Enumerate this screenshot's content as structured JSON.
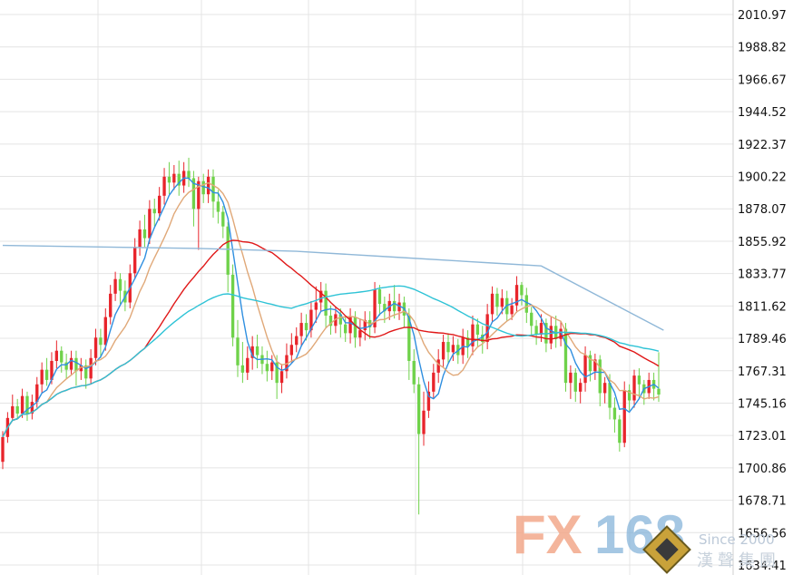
{
  "chart_data": {
    "type": "candlestick",
    "title": "",
    "xlabel": "",
    "ylabel": "",
    "ylim": [
      1634.41,
      2010.97
    ],
    "grid": true,
    "y_ticks": [
      "2010.97",
      "1988.82",
      "1966.67",
      "1944.52",
      "1922.37",
      "1900.22",
      "1878.07",
      "1855.92",
      "1833.77",
      "1811.62",
      "1789.46",
      "1767.31",
      "1745.16",
      "1723.01",
      "1700.86",
      "1678.71",
      "1656.56",
      "1634.41"
    ],
    "up_color": "#e8242b",
    "down_color": "#6fd24a",
    "candles": [
      [
        1705,
        1722,
        1700,
        1726
      ],
      [
        1722,
        1735,
        1718,
        1739
      ],
      [
        1735,
        1743,
        1733,
        1751
      ],
      [
        1743,
        1738,
        1734,
        1748
      ],
      [
        1738,
        1750,
        1735,
        1755
      ],
      [
        1750,
        1738,
        1733,
        1753
      ],
      [
        1738,
        1746,
        1734,
        1751
      ],
      [
        1746,
        1758,
        1742,
        1763
      ],
      [
        1758,
        1768,
        1752,
        1773
      ],
      [
        1768,
        1761,
        1757,
        1776
      ],
      [
        1761,
        1774,
        1758,
        1780
      ],
      [
        1774,
        1781,
        1769,
        1788
      ],
      [
        1781,
        1773,
        1766,
        1784
      ],
      [
        1773,
        1768,
        1762,
        1779
      ],
      [
        1768,
        1776,
        1765,
        1781
      ],
      [
        1776,
        1767,
        1757,
        1781
      ],
      [
        1767,
        1771,
        1761,
        1776
      ],
      [
        1771,
        1762,
        1755,
        1775
      ],
      [
        1762,
        1776,
        1758,
        1782
      ],
      [
        1776,
        1790,
        1771,
        1796
      ],
      [
        1790,
        1785,
        1776,
        1796
      ],
      [
        1785,
        1804,
        1781,
        1810
      ],
      [
        1804,
        1820,
        1799,
        1826
      ],
      [
        1820,
        1830,
        1815,
        1835
      ],
      [
        1830,
        1822,
        1813,
        1834
      ],
      [
        1822,
        1814,
        1808,
        1829
      ],
      [
        1814,
        1834,
        1810,
        1840
      ],
      [
        1834,
        1852,
        1830,
        1858
      ],
      [
        1852,
        1864,
        1846,
        1870
      ],
      [
        1864,
        1858,
        1852,
        1874
      ],
      [
        1858,
        1878,
        1854,
        1884
      ],
      [
        1878,
        1875,
        1866,
        1885
      ],
      [
        1875,
        1887,
        1870,
        1893
      ],
      [
        1887,
        1900,
        1881,
        1906
      ],
      [
        1900,
        1896,
        1888,
        1910
      ],
      [
        1896,
        1902,
        1891,
        1908
      ],
      [
        1902,
        1894,
        1887,
        1911
      ],
      [
        1894,
        1904,
        1889,
        1910
      ],
      [
        1904,
        1899,
        1893,
        1913
      ],
      [
        1899,
        1878,
        1866,
        1904
      ],
      [
        1878,
        1897,
        1850,
        1900
      ],
      [
        1897,
        1888,
        1882,
        1902
      ],
      [
        1888,
        1900,
        1882,
        1905
      ],
      [
        1900,
        1883,
        1872,
        1905
      ],
      [
        1883,
        1876,
        1868,
        1891
      ],
      [
        1876,
        1866,
        1858,
        1880
      ],
      [
        1866,
        1833,
        1821,
        1869
      ],
      [
        1833,
        1790,
        1784,
        1840
      ],
      [
        1790,
        1771,
        1763,
        1802
      ],
      [
        1771,
        1766,
        1759,
        1787
      ],
      [
        1766,
        1776,
        1761,
        1784
      ],
      [
        1776,
        1784,
        1768,
        1791
      ],
      [
        1784,
        1778,
        1769,
        1792
      ],
      [
        1778,
        1772,
        1765,
        1784
      ],
      [
        1772,
        1767,
        1760,
        1781
      ],
      [
        1767,
        1773,
        1761,
        1778
      ],
      [
        1773,
        1759,
        1748,
        1778
      ],
      [
        1759,
        1767,
        1752,
        1772
      ],
      [
        1767,
        1778,
        1762,
        1786
      ],
      [
        1778,
        1785,
        1773,
        1793
      ],
      [
        1785,
        1791,
        1780,
        1797
      ],
      [
        1791,
        1800,
        1784,
        1807
      ],
      [
        1800,
        1795,
        1788,
        1806
      ],
      [
        1795,
        1809,
        1790,
        1815
      ],
      [
        1809,
        1814,
        1800,
        1825
      ],
      [
        1814,
        1822,
        1808,
        1828
      ],
      [
        1822,
        1805,
        1797,
        1827
      ],
      [
        1805,
        1798,
        1792,
        1812
      ],
      [
        1798,
        1806,
        1793,
        1811
      ],
      [
        1806,
        1799,
        1790,
        1810
      ],
      [
        1799,
        1793,
        1787,
        1805
      ],
      [
        1793,
        1804,
        1786,
        1810
      ],
      [
        1804,
        1790,
        1783,
        1808
      ],
      [
        1790,
        1795,
        1784,
        1803
      ],
      [
        1795,
        1802,
        1788,
        1808
      ],
      [
        1802,
        1797,
        1789,
        1808
      ],
      [
        1797,
        1823,
        1793,
        1828
      ],
      [
        1823,
        1813,
        1805,
        1826
      ],
      [
        1813,
        1808,
        1800,
        1818
      ],
      [
        1808,
        1815,
        1802,
        1820
      ],
      [
        1815,
        1808,
        1803,
        1826
      ],
      [
        1808,
        1814,
        1802,
        1820
      ],
      [
        1814,
        1805,
        1797,
        1818
      ],
      [
        1805,
        1774,
        1761,
        1810
      ],
      [
        1774,
        1758,
        1752,
        1782
      ],
      [
        1758,
        1724,
        1669,
        1763
      ],
      [
        1724,
        1740,
        1716,
        1753
      ],
      [
        1740,
        1753,
        1735,
        1760
      ],
      [
        1753,
        1766,
        1748,
        1772
      ],
      [
        1766,
        1775,
        1759,
        1782
      ],
      [
        1775,
        1787,
        1770,
        1792
      ],
      [
        1787,
        1780,
        1772,
        1793
      ],
      [
        1780,
        1785,
        1774,
        1791
      ],
      [
        1785,
        1778,
        1772,
        1789
      ],
      [
        1778,
        1790,
        1772,
        1796
      ],
      [
        1790,
        1784,
        1776,
        1795
      ],
      [
        1784,
        1799,
        1778,
        1805
      ],
      [
        1799,
        1792,
        1784,
        1803
      ],
      [
        1792,
        1787,
        1779,
        1798
      ],
      [
        1787,
        1806,
        1782,
        1813
      ],
      [
        1806,
        1820,
        1800,
        1825
      ],
      [
        1820,
        1811,
        1805,
        1824
      ],
      [
        1811,
        1817,
        1806,
        1823
      ],
      [
        1817,
        1806,
        1801,
        1822
      ],
      [
        1806,
        1812,
        1802,
        1817
      ],
      [
        1812,
        1826,
        1807,
        1832
      ],
      [
        1826,
        1819,
        1812,
        1828
      ],
      [
        1819,
        1807,
        1800,
        1824
      ],
      [
        1807,
        1798,
        1791,
        1811
      ],
      [
        1798,
        1792,
        1785,
        1802
      ],
      [
        1792,
        1800,
        1787,
        1806
      ],
      [
        1800,
        1786,
        1780,
        1803
      ],
      [
        1786,
        1798,
        1782,
        1804
      ],
      [
        1798,
        1789,
        1783,
        1805
      ],
      [
        1789,
        1796,
        1784,
        1801
      ],
      [
        1796,
        1759,
        1753,
        1800
      ],
      [
        1759,
        1766,
        1748,
        1771
      ],
      [
        1766,
        1753,
        1746,
        1769
      ],
      [
        1753,
        1759,
        1745,
        1762
      ],
      [
        1759,
        1778,
        1753,
        1784
      ],
      [
        1778,
        1767,
        1760,
        1781
      ],
      [
        1767,
        1775,
        1761,
        1779
      ],
      [
        1775,
        1752,
        1743,
        1778
      ],
      [
        1752,
        1759,
        1745,
        1763
      ],
      [
        1759,
        1742,
        1734,
        1765
      ],
      [
        1742,
        1734,
        1725,
        1749
      ],
      [
        1734,
        1718,
        1712,
        1737
      ],
      [
        1718,
        1754,
        1715,
        1760
      ],
      [
        1754,
        1747,
        1740,
        1758
      ],
      [
        1747,
        1764,
        1742,
        1768
      ],
      [
        1764,
        1758,
        1748,
        1769
      ],
      [
        1758,
        1752,
        1744,
        1761
      ],
      [
        1752,
        1761,
        1748,
        1766
      ],
      [
        1761,
        1755,
        1747,
        1766
      ],
      [
        1755,
        1751,
        1746,
        1780
      ]
    ],
    "moving_averages": [
      {
        "color": "#2f8fe0",
        "period": 5
      },
      {
        "color": "#e0a878",
        "period": 10
      },
      {
        "color": "#e01818",
        "period": 30
      },
      {
        "color": "#2ec3d6",
        "period": 60
      }
    ],
    "long_ma": {
      "color": "#90b8d8",
      "points": [
        [
          0,
          1853
        ],
        [
          20,
          1852
        ],
        [
          40,
          1851
        ],
        [
          60,
          1849
        ],
        [
          80,
          1845
        ],
        [
          100,
          1841
        ],
        [
          110,
          1839
        ],
        [
          135,
          1795
        ]
      ]
    }
  },
  "watermark": {
    "fx": "FX",
    "num": "168",
    "sub": "Since 2000",
    "cn": "漢聲集團"
  }
}
